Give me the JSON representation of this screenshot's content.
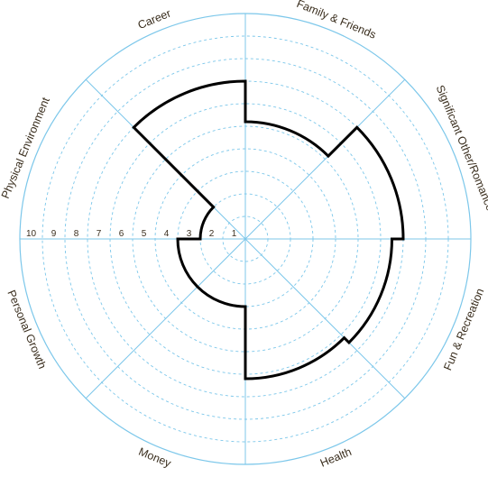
{
  "chart_data": {
    "type": "radial-bar",
    "title": "",
    "scale": {
      "min": 0,
      "max": 10,
      "rings": [
        1,
        2,
        3,
        4,
        5,
        6,
        7,
        8,
        9,
        10
      ]
    },
    "scale_labels": [
      "1",
      "2",
      "3",
      "4",
      "5",
      "6",
      "7",
      "8",
      "9",
      "10"
    ],
    "categories": [
      "Family & Friends",
      "Significant Other/Romance",
      "Fun & Recreation",
      "Health",
      "Money",
      "Personal Growth",
      "Physical Environment",
      "Career"
    ],
    "values": [
      5.2,
      7.0,
      6.5,
      6.2,
      3.0,
      3.0,
      2.0,
      7.0
    ],
    "colors": {
      "grid": "#7cc7ea",
      "outline": "#000000",
      "text": "#3a2e1e"
    }
  }
}
